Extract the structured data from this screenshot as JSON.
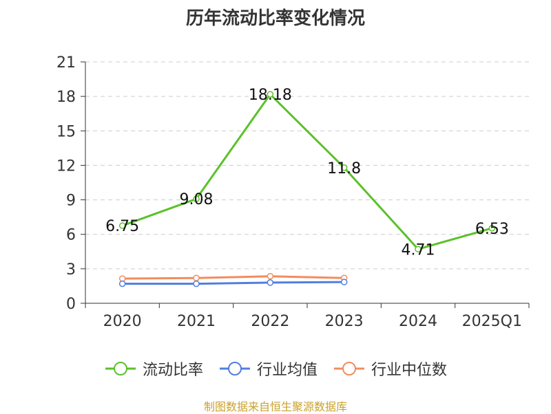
{
  "title": "历年流动比率变化情况",
  "source_note": "制图数据来自恒生聚源数据库",
  "colors": {
    "current_ratio": "#5bc12a",
    "industry_mean": "#4f7fe0",
    "industry_median": "#f28c5e",
    "axis": "#333333",
    "grid": "#cccccc",
    "source": "#c9a22b"
  },
  "chart_data": {
    "type": "line",
    "categories": [
      "2020",
      "2021",
      "2022",
      "2023",
      "2024",
      "2025Q1"
    ],
    "ylim": [
      0,
      21
    ],
    "yticks": [
      0,
      3,
      6,
      9,
      12,
      15,
      18,
      21
    ],
    "grid": "horizontal-dashed",
    "legend_position": "bottom",
    "series": [
      {
        "name": "流动比率",
        "color_key": "current_ratio",
        "values": [
          6.75,
          9.08,
          18.18,
          11.8,
          4.71,
          6.53
        ],
        "labels": [
          "6.75",
          "9.08",
          "18.18",
          "11.8",
          "4.71",
          "6.53"
        ]
      },
      {
        "name": "行业均值",
        "color_key": "industry_mean",
        "values": [
          1.7,
          1.7,
          1.8,
          1.85,
          null,
          null
        ]
      },
      {
        "name": "行业中位数",
        "color_key": "industry_median",
        "values": [
          2.15,
          2.2,
          2.35,
          2.2,
          null,
          null
        ]
      }
    ]
  }
}
